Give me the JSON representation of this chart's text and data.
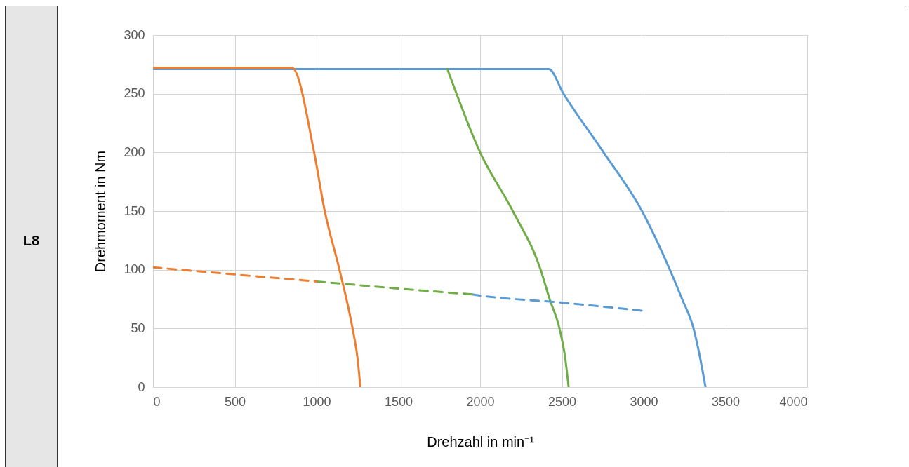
{
  "chart_data": {
    "type": "line",
    "xlabel": "Drehzahl in min⁻¹",
    "ylabel": "Drehmoment in Nm",
    "annotations": [
      "L8"
    ],
    "xlim": [
      0,
      4000
    ],
    "xticks": [
      0,
      500,
      1000,
      1500,
      2000,
      2500,
      3000,
      3500,
      4000
    ],
    "ylim": [
      0,
      300
    ],
    "yticks": [
      0,
      50,
      100,
      150,
      200,
      250,
      300
    ],
    "grid": true,
    "series": [
      {
        "color": "#5b9bd5",
        "line_style": "solid",
        "x": [
          0,
          2420,
          2510,
          2755,
          2990,
          3160,
          3235,
          3305,
          3345,
          3378
        ],
        "values": [
          271,
          271,
          250,
          200,
          150,
          100,
          75,
          50,
          25,
          0
        ]
      },
      {
        "color": "#70ad47",
        "line_style": "solid",
        "x": [
          1800,
          2000,
          2200,
          2370,
          2425,
          2485,
          2520,
          2541
        ],
        "values": [
          271,
          200,
          150,
          100,
          75,
          50,
          25,
          0
        ]
      },
      {
        "color": "#ed7d31",
        "line_style": "solid",
        "x": [
          0,
          850,
          985,
          1050,
          1140,
          1220,
          1250,
          1268
        ],
        "values": [
          272,
          272,
          200,
          150,
          100,
          50,
          25,
          0
        ]
      },
      {
        "color": "#5b9bd5",
        "line_style": "dashed",
        "x": [
          1950,
          2000,
          2500,
          3000
        ],
        "values": [
          79,
          78,
          72,
          65
        ]
      },
      {
        "color": "#70ad47",
        "line_style": "dashed",
        "x": [
          1000,
          1500,
          1950
        ],
        "values": [
          90,
          84,
          79
        ]
      },
      {
        "color": "#ed7d31",
        "line_style": "dashed",
        "x": [
          0,
          500,
          1000
        ],
        "values": [
          102,
          96,
          90
        ]
      }
    ]
  }
}
